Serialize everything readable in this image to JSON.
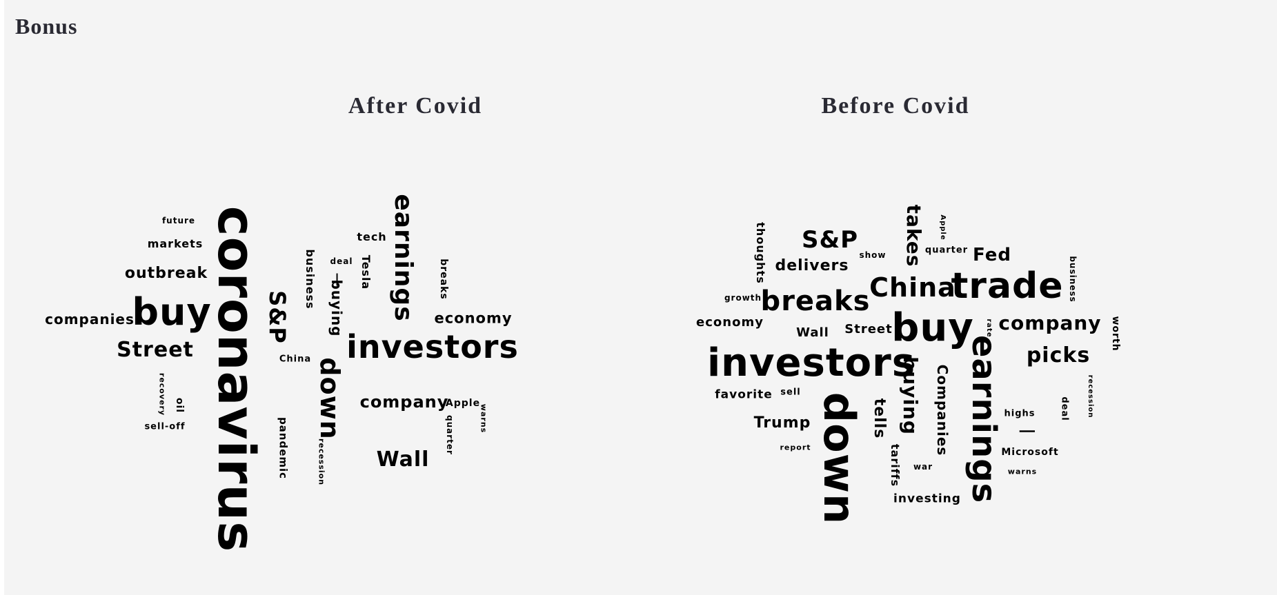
{
  "page": {
    "heading": "Bonus"
  },
  "clouds": [
    {
      "title": "After Covid",
      "words": [
        "coronavirus",
        "buy",
        "investors",
        "earnings",
        "down",
        "Street",
        "outbreak",
        "companies",
        "S&P",
        "Wall",
        "company",
        "economy",
        "markets",
        "future",
        "business",
        "buying",
        "tech",
        "Tesla",
        "deal",
        "breaks",
        "China",
        "Apple",
        "quarter",
        "warns",
        "pandemic",
        "recession",
        "recovery",
        "oil",
        "sell-off",
        "|"
      ]
    },
    {
      "title": "Before Covid",
      "words": [
        "investors",
        "down",
        "buy",
        "earnings",
        "trade",
        "China",
        "breaks",
        "S&P",
        "takes",
        "company",
        "picks",
        "buying",
        "Companies",
        "delivers",
        "thoughts",
        "Fed",
        "economy",
        "Wall",
        "Street",
        "favorite",
        "Trump",
        "tells",
        "tariffs",
        "investing",
        "Microsoft",
        "highs",
        "deal",
        "business",
        "worth",
        "recession",
        "rate",
        "quarter",
        "show",
        "Apple",
        "growth",
        "sell",
        "report",
        "war",
        "warns",
        "|"
      ]
    }
  ]
}
